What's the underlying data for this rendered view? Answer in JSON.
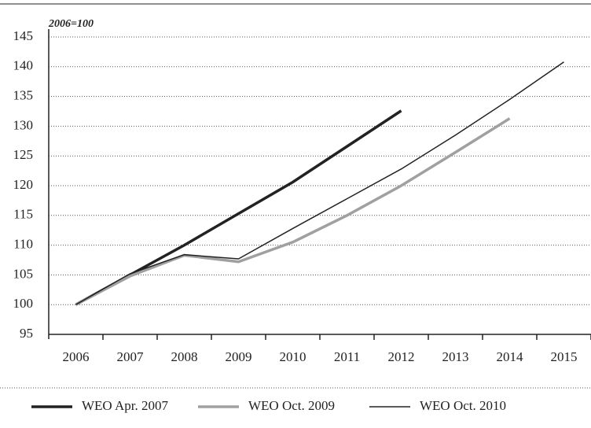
{
  "chart_data": {
    "type": "line",
    "subtitle": "2006=100",
    "categories": [
      "2006",
      "2007",
      "2008",
      "2009",
      "2010",
      "2011",
      "2012",
      "2013",
      "2014",
      "2015"
    ],
    "series": [
      {
        "name": "WEO Apr. 2007",
        "color": "#222222",
        "width": 3.5,
        "values": [
          100,
          105,
          110,
          115.3,
          120.6,
          126.6,
          132.6,
          null,
          null,
          null
        ]
      },
      {
        "name": "WEO Oct. 2009",
        "color": "#a0a0a0",
        "width": 3.5,
        "values": [
          100,
          104.8,
          108.3,
          107.2,
          110.5,
          115,
          120,
          125.6,
          131.3,
          null
        ]
      },
      {
        "name": "WEO Oct. 2010",
        "color": "#222222",
        "width": 1.5,
        "values": [
          100,
          105.2,
          108.4,
          107.7,
          112.8,
          117.8,
          122.8,
          128.5,
          134.5,
          140.8
        ]
      }
    ],
    "ylim": [
      95,
      145
    ],
    "yticks": [
      95,
      100,
      105,
      110,
      115,
      120,
      125,
      130,
      135,
      140,
      145
    ],
    "grid": true
  }
}
